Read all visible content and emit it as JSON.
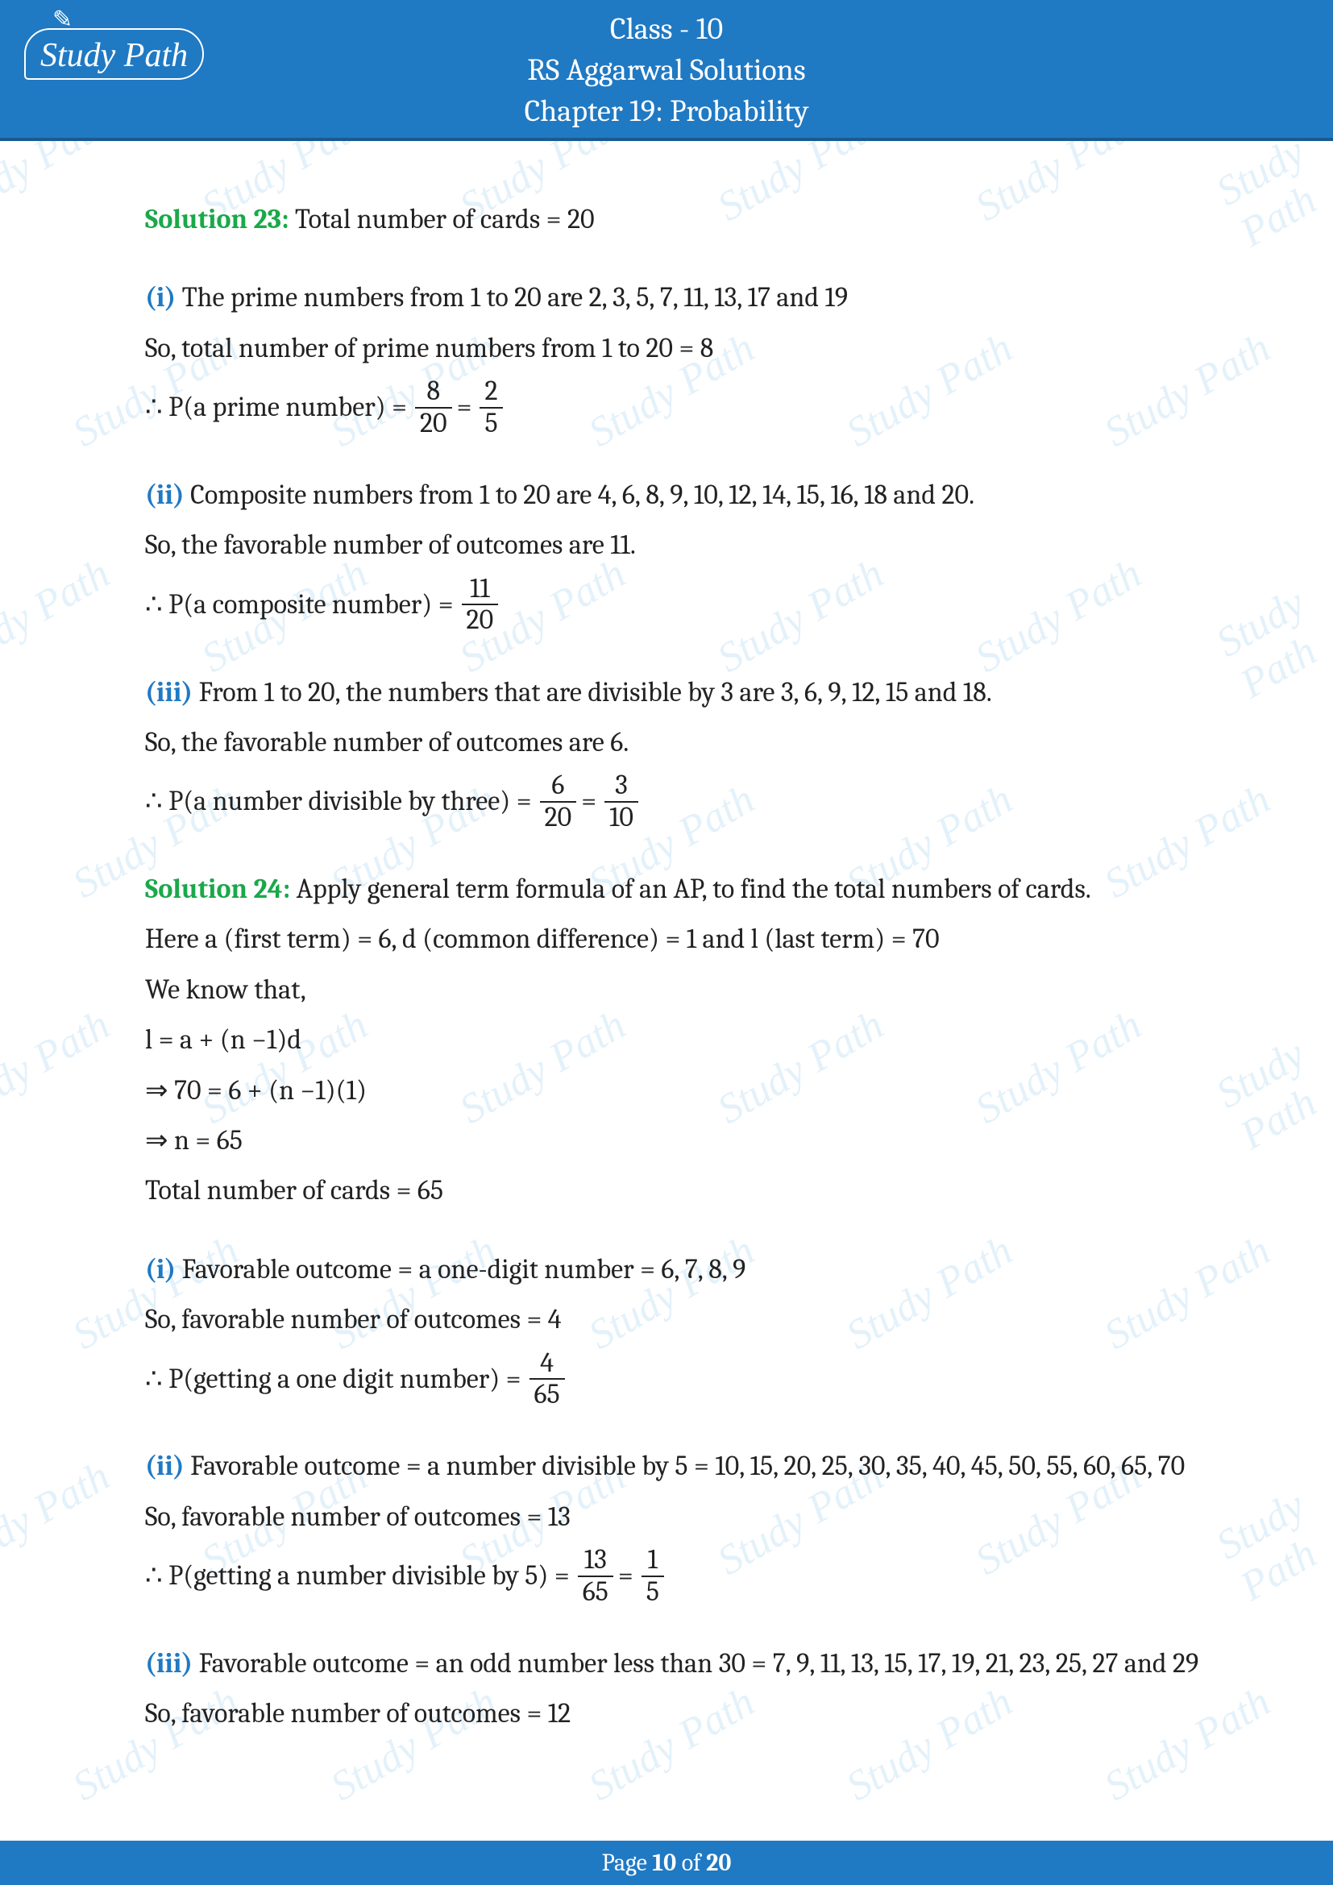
{
  "header": {
    "logo_text": "Study Path",
    "line1": "Class - 10",
    "line2": "RS Aggarwal Solutions",
    "line3": "Chapter 19: Probability"
  },
  "watermark_text": "Study Path",
  "sol23": {
    "label": "Solution 23:",
    "intro": " Total number of cards = 20",
    "i": {
      "label": "(i)",
      "line1": " The prime numbers from 1 to 20 are 2, 3, 5, 7, 11, 13, 17 and 19",
      "line2": "So, total number of prime numbers from 1 to 20 = 8",
      "eq_prefix": "∴ P(a prime number) =",
      "frac1_num": "8",
      "frac1_den": "20",
      "eq_mid": "=",
      "frac2_num": "2",
      "frac2_den": "5"
    },
    "ii": {
      "label": "(ii)",
      "line1": " Composite numbers from 1 to 20 are 4, 6, 8, 9, 10, 12, 14, 15, 16, 18 and 20.",
      "line2": "So, the favorable number of outcomes are 11.",
      "eq_prefix": "∴ P(a composite number) =",
      "frac1_num": "11",
      "frac1_den": "20"
    },
    "iii": {
      "label": "(iii)",
      "line1": " From 1 to 20, the numbers that are divisible by 3 are 3, 6, 9, 12, 15 and 18.",
      "line2": "So, the favorable number of outcomes are 6.",
      "eq_prefix": "∴ P(a number divisible by three) =",
      "frac1_num": "6",
      "frac1_den": "20",
      "eq_mid": "=",
      "frac2_num": "3",
      "frac2_den": "10"
    }
  },
  "sol24": {
    "label": "Solution 24:",
    "intro": " Apply general term formula of an AP, to find the total numbers of cards.",
    "line2": "Here a (first term) = 6, d (common difference) = 1 and l (last term) = 70",
    "line3": "We know that,",
    "line4": "l = a + (n −1)d",
    "line5": "⇒ 70 = 6 + (n −1)(1)",
    "line6": "⇒ n = 65",
    "line7": "Total number of cards = 65",
    "i": {
      "label": "(i)",
      "line1": " Favorable outcome = a one-digit number = 6, 7, 8, 9",
      "line2": "So, favorable number of outcomes = 4",
      "eq_prefix": "∴ P(getting a one digit number) =",
      "frac1_num": "4",
      "frac1_den": "65"
    },
    "ii": {
      "label": "(ii)",
      "line1": " Favorable outcome = a number divisible by 5 = 10, 15, 20, 25, 30, 35, 40, 45, 50, 55, 60, 65, 70",
      "line2": "So, favorable number of outcomes = 13",
      "eq_prefix": "∴ P(getting a number divisible by 5) =",
      "frac1_num": "13",
      "frac1_den": "65",
      "eq_mid": "=",
      "frac2_num": "1",
      "frac2_den": "5"
    },
    "iii": {
      "label": "(iii)",
      "line1": " Favorable outcome = an odd number less than 30 = 7, 9, 11, 13, 15, 17, 19, 21, 23, 25, 27 and 29",
      "line2": "So, favorable number of outcomes = 12"
    }
  },
  "footer": {
    "prefix": "Page ",
    "page": "10",
    "mid": " of ",
    "total": "20"
  },
  "style": {
    "header_bg": "#2079c3",
    "text_color": "#222222",
    "sol_color": "#1ba84a",
    "part_color": "#2079c3",
    "body_fontsize": 34,
    "header_fontsize": 38
  }
}
